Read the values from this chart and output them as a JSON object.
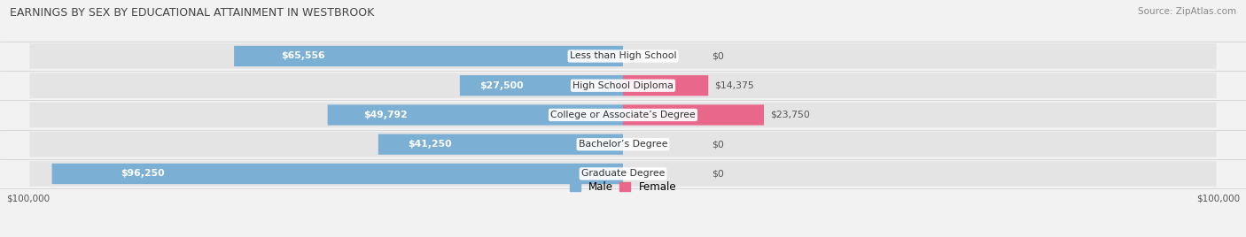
{
  "title": "EARNINGS BY SEX BY EDUCATIONAL ATTAINMENT IN WESTBROOK",
  "source": "Source: ZipAtlas.com",
  "categories": [
    "Less than High School",
    "High School Diploma",
    "College or Associate’s Degree",
    "Bachelor’s Degree",
    "Graduate Degree"
  ],
  "male_values": [
    65556,
    27500,
    49792,
    41250,
    96250
  ],
  "female_values": [
    0,
    14375,
    23750,
    0,
    0
  ],
  "male_labels": [
    "$65,556",
    "$27,500",
    "$49,792",
    "$41,250",
    "$96,250"
  ],
  "female_labels": [
    "$0",
    "$14,375",
    "$23,750",
    "$0",
    "$0"
  ],
  "male_color": "#7bafd4",
  "female_color": "#f4a0b5",
  "female_color_vivid": "#e8678a",
  "max_value": 100000,
  "bg_color": "#f2f2f2",
  "row_bg": "#e4e4e4",
  "legend_male": "Male",
  "legend_female": "Female",
  "x_tick_left": "$100,000",
  "x_tick_right": "$100,000"
}
